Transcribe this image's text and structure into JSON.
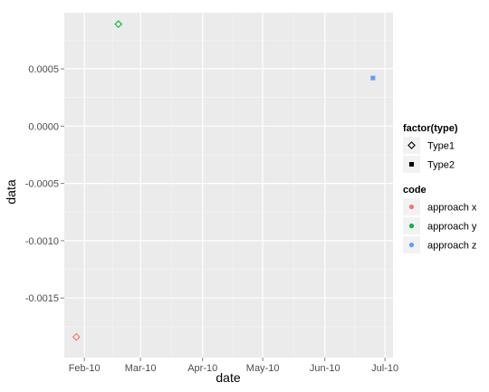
{
  "chart_data": {
    "type": "scatter",
    "title": "",
    "xlabel": "date",
    "ylabel": "data",
    "xlim": [
      "2010-01-22",
      "2010-07-05"
    ],
    "ylim": [
      -0.00202,
      0.00099
    ],
    "x_ticks": [
      {
        "value": "2010-02-01",
        "label": "Feb-10"
      },
      {
        "value": "2010-03-01",
        "label": "Mar-10"
      },
      {
        "value": "2010-04-01",
        "label": "Apr-10"
      },
      {
        "value": "2010-05-01",
        "label": "May-10"
      },
      {
        "value": "2010-06-01",
        "label": "Jun-10"
      },
      {
        "value": "2010-07-01",
        "label": "Jul-10"
      }
    ],
    "y_ticks": [
      {
        "value": 0.0005,
        "label": "0.0005"
      },
      {
        "value": 0.0,
        "label": "0.0000"
      },
      {
        "value": -0.0005,
        "label": "-0.0005"
      },
      {
        "value": -0.001,
        "label": "-0.0010"
      },
      {
        "value": -0.0015,
        "label": "-0.0015"
      }
    ],
    "grid": true,
    "legend_position": "right",
    "points": [
      {
        "date": "2010-01-28",
        "value": -0.00184,
        "type": "Type1",
        "code": "approach x"
      },
      {
        "date": "2010-02-18",
        "value": 0.00089,
        "type": "Type1",
        "code": "approach y"
      },
      {
        "date": "2010-06-25",
        "value": 0.00042,
        "type": "Type2",
        "code": "approach z"
      }
    ],
    "legends": [
      {
        "title": "factor(type)",
        "kind": "shape",
        "entries": [
          {
            "label": "Type1",
            "shape": "open-diamond"
          },
          {
            "label": "Type2",
            "shape": "filled-square"
          }
        ]
      },
      {
        "title": "code",
        "kind": "color",
        "entries": [
          {
            "label": "approach x",
            "color": "#f8766d"
          },
          {
            "label": "approach y",
            "color": "#00ba38"
          },
          {
            "label": "approach z",
            "color": "#619cff"
          }
        ]
      }
    ]
  }
}
